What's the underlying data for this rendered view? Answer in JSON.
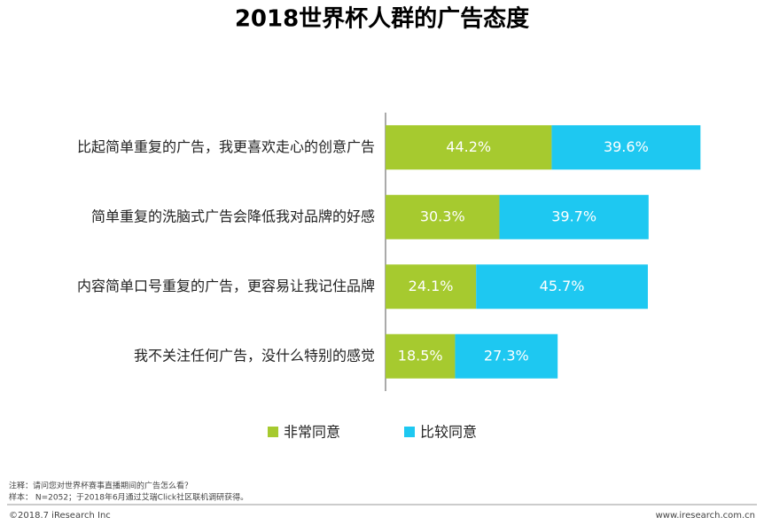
{
  "chart_data": {
    "type": "stacked-bar-horizontal",
    "title": "2018世界杯人群的广告态度",
    "categories": [
      "比起简单重复的广告，我更喜欢走心的创意广告",
      "简单重复的洗脑式广告会降低我对品牌的好感",
      "内容简单口号重复的广告，更容易让我记住品牌",
      "我不关注任何广告，没什么特别的感觉"
    ],
    "series": [
      {
        "name": "非常同意",
        "color": "#a6ca2f",
        "values": [
          44.2,
          30.3,
          24.1,
          18.5
        ],
        "value_labels": [
          "44.2%",
          "30.3%",
          "24.1%",
          "18.5%"
        ]
      },
      {
        "name": "比较同意",
        "color": "#1ec8f1",
        "values": [
          39.6,
          39.7,
          45.7,
          27.3
        ],
        "value_labels": [
          "39.6%",
          "39.7%",
          "45.7%",
          "27.3%"
        ]
      }
    ],
    "xlim": [
      0,
      100
    ],
    "legend": "bottom"
  },
  "notes": [
    "注释：请问您对世界杯赛事直播期间的广告怎么看？",
    "样本： N=2052；于2018年6月通过艾瑞Click社区联机调研获得。"
  ],
  "footer": {
    "left": "©2018.7 iResearch Inc",
    "right": "www.iresearch.com.cn"
  }
}
